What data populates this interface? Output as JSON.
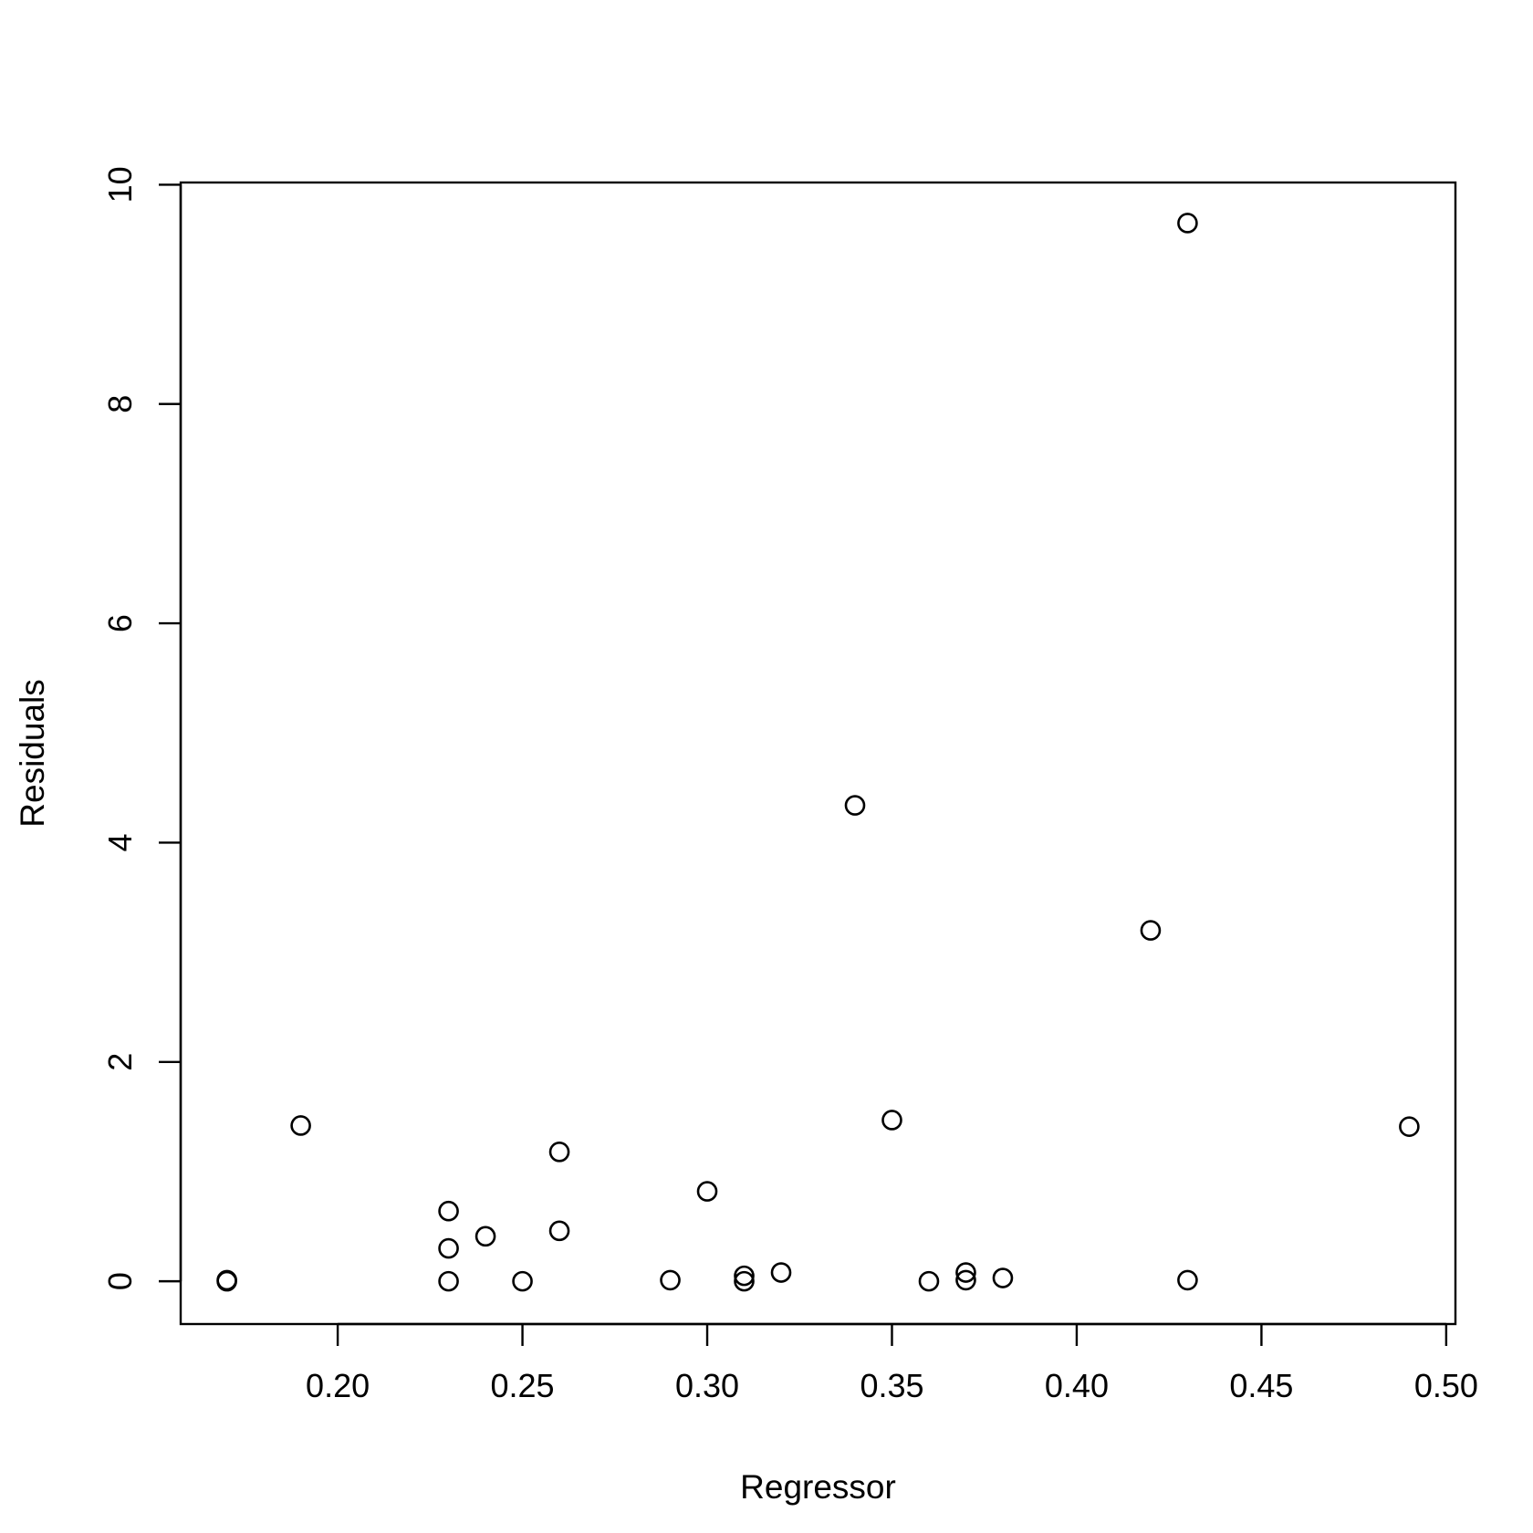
{
  "chart_data": {
    "type": "scatter",
    "title": "",
    "xlabel": "Regressor",
    "ylabel": "Residuals",
    "xlim": [
      0.1575,
      0.5025
    ],
    "ylim": [
      -0.39,
      10.02
    ],
    "x_ticks": [
      0.2,
      0.25,
      0.3,
      0.35,
      0.4,
      0.45,
      0.5
    ],
    "x_tick_labels": [
      "0.20",
      "0.25",
      "0.30",
      "0.35",
      "0.40",
      "0.45",
      "0.50"
    ],
    "y_ticks": [
      0,
      2,
      4,
      6,
      8,
      10
    ],
    "y_tick_labels": [
      "0",
      "2",
      "4",
      "6",
      "8",
      "10"
    ],
    "grid": false,
    "legend": "none",
    "marker": "open-circle",
    "color": "#000000",
    "points": [
      {
        "x": 0.17,
        "y": 0.0
      },
      {
        "x": 0.17,
        "y": 0.01
      },
      {
        "x": 0.19,
        "y": 1.42
      },
      {
        "x": 0.23,
        "y": 0.64
      },
      {
        "x": 0.23,
        "y": 0.3
      },
      {
        "x": 0.23,
        "y": 0.0
      },
      {
        "x": 0.24,
        "y": 0.41
      },
      {
        "x": 0.25,
        "y": 0.0
      },
      {
        "x": 0.26,
        "y": 1.18
      },
      {
        "x": 0.26,
        "y": 0.46
      },
      {
        "x": 0.29,
        "y": 0.01
      },
      {
        "x": 0.3,
        "y": 0.82
      },
      {
        "x": 0.31,
        "y": 0.05
      },
      {
        "x": 0.31,
        "y": 0.0
      },
      {
        "x": 0.32,
        "y": 0.08
      },
      {
        "x": 0.34,
        "y": 4.34
      },
      {
        "x": 0.35,
        "y": 1.47
      },
      {
        "x": 0.36,
        "y": 0.0
      },
      {
        "x": 0.37,
        "y": 0.08
      },
      {
        "x": 0.37,
        "y": 0.01
      },
      {
        "x": 0.38,
        "y": 0.03
      },
      {
        "x": 0.42,
        "y": 3.2
      },
      {
        "x": 0.43,
        "y": 9.65
      },
      {
        "x": 0.43,
        "y": 0.01
      },
      {
        "x": 0.49,
        "y": 1.41
      }
    ]
  }
}
